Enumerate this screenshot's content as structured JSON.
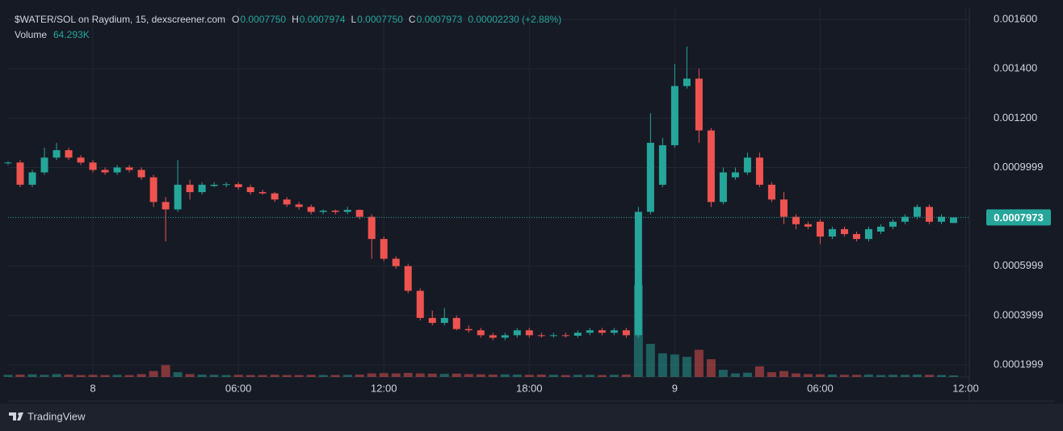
{
  "chart_data": {
    "type": "candlestick",
    "title": "$WATER/SOL on Raydium, 15, dexscreener.com",
    "header": [
      {
        "key": "O",
        "value": "0.0007750"
      },
      {
        "key": "H",
        "value": "0.0007974"
      },
      {
        "key": "L",
        "value": "0.0007750"
      },
      {
        "key": "C",
        "value": "0.0007973"
      }
    ],
    "change": "0.00002230 (+2.88%)",
    "volume_title": "Volume",
    "volume_value_label": "64.293K",
    "brand": "TradingView",
    "up_color": "#26a69a",
    "down_color": "#ef5350",
    "grid": true,
    "open": [
      0.00102,
      0.00102,
      0.00093,
      0.00098,
      0.00104,
      0.00107,
      0.00104,
      0.00102,
      0.00099,
      0.00098,
      0.001,
      0.00099,
      0.00096,
      0.00086,
      0.00083,
      0.00093,
      0.0009,
      0.000925,
      0.00093,
      0.000932,
      0.00092,
      0.0009,
      0.000895,
      0.00087,
      0.00085,
      0.00084,
      0.00082,
      0.000825,
      0.00082,
      0.000828,
      0.0008,
      0.00071,
      0.00063,
      0.0006,
      0.0005,
      0.00039,
      0.00037,
      0.00039,
      0.000345,
      0.00034,
      0.00032,
      0.00031,
      0.00032,
      0.00034,
      0.00032,
      0.000318,
      0.00032,
      0.000318,
      0.00033,
      0.00034,
      0.00033,
      0.00034,
      0.00032,
      0.00082,
      0.00093,
      0.00109,
      0.00133,
      0.00136,
      0.00115,
      0.00086,
      0.00096,
      0.00098,
      0.00104,
      0.00093,
      0.00087,
      0.0008,
      0.00077,
      0.00078,
      0.00072,
      0.00075,
      0.00073,
      0.00071,
      0.00074,
      0.00076,
      0.00078,
      0.0008,
      0.00084,
      0.00078,
      0.000775
    ],
    "high": [
      0.001025,
      0.00103,
      0.00099,
      0.00108,
      0.0011,
      0.00108,
      0.00105,
      0.00103,
      0.001,
      0.00101,
      0.00101,
      0.001,
      0.00097,
      0.00088,
      0.00103,
      0.00095,
      0.00094,
      0.00094,
      0.00094,
      0.00094,
      0.00093,
      0.00091,
      0.0009,
      0.00088,
      0.00086,
      0.00085,
      0.00083,
      0.00083,
      0.00084,
      0.00083,
      0.00081,
      0.00072,
      0.00064,
      0.00061,
      0.00051,
      0.00042,
      0.00043,
      0.0004,
      0.00036,
      0.00035,
      0.00033,
      0.00033,
      0.00035,
      0.00035,
      0.00033,
      0.00033,
      0.00033,
      0.00034,
      0.00035,
      0.00035,
      0.00035,
      0.00035,
      0.00084,
      0.00122,
      0.00112,
      0.00142,
      0.00149,
      0.0014,
      0.00116,
      0.001,
      0.001,
      0.00106,
      0.00106,
      0.00094,
      0.0009,
      0.00081,
      0.00078,
      0.00079,
      0.00076,
      0.00076,
      0.00074,
      0.00076,
      0.00077,
      0.00079,
      0.00081,
      0.00085,
      0.00085,
      0.00081,
      0.0007974
    ],
    "low": [
      0.00101,
      0.00092,
      0.00092,
      0.00097,
      0.00103,
      0.00103,
      0.00101,
      0.00098,
      0.00097,
      0.00097,
      0.00098,
      0.00095,
      0.00084,
      0.0007,
      0.00082,
      0.00087,
      0.00089,
      0.00092,
      0.00092,
      0.00091,
      0.00089,
      0.00089,
      0.00086,
      0.00084,
      0.00083,
      0.00081,
      0.00081,
      0.00081,
      0.00081,
      0.00079,
      0.00063,
      0.00062,
      0.00059,
      0.00049,
      0.00038,
      0.00036,
      0.00036,
      0.00034,
      0.00033,
      0.00031,
      0.0003,
      0.0003,
      0.00031,
      0.00031,
      0.00031,
      0.00031,
      0.00031,
      0.00031,
      0.00032,
      0.00032,
      0.00032,
      0.00031,
      0.00031,
      0.00081,
      0.00092,
      0.00108,
      0.00132,
      0.0011,
      0.00084,
      0.00085,
      0.00095,
      0.00097,
      0.00092,
      0.00086,
      0.00077,
      0.00075,
      0.00075,
      0.00069,
      0.00071,
      0.00072,
      0.0007,
      0.0007,
      0.00073,
      0.00075,
      0.00077,
      0.00079,
      0.00077,
      0.00077,
      0.000775
    ],
    "close": [
      0.00102,
      0.00093,
      0.00098,
      0.00104,
      0.00107,
      0.00104,
      0.00102,
      0.00099,
      0.00098,
      0.001,
      0.00099,
      0.00096,
      0.00086,
      0.00083,
      0.00093,
      0.0009,
      0.00093,
      0.00093,
      0.000932,
      0.00092,
      0.0009,
      0.000895,
      0.00087,
      0.00085,
      0.00084,
      0.00082,
      0.000825,
      0.00082,
      0.000828,
      0.0008,
      0.00071,
      0.00063,
      0.0006,
      0.0005,
      0.00039,
      0.00037,
      0.00039,
      0.000345,
      0.00034,
      0.00032,
      0.00031,
      0.00032,
      0.00034,
      0.00032,
      0.000318,
      0.00032,
      0.000318,
      0.00033,
      0.00034,
      0.00033,
      0.00034,
      0.00032,
      0.00082,
      0.0011,
      0.00109,
      0.00133,
      0.00136,
      0.00115,
      0.00086,
      0.00098,
      0.00098,
      0.00104,
      0.00093,
      0.00087,
      0.0008,
      0.00077,
      0.00076,
      0.00072,
      0.00075,
      0.00073,
      0.00071,
      0.00075,
      0.00076,
      0.00078,
      0.0008,
      0.00084,
      0.00078,
      0.0008,
      0.0007973
    ],
    "volume": [
      90000,
      100000,
      110000,
      90000,
      120000,
      100000,
      80000,
      90000,
      80000,
      90000,
      80000,
      120000,
      250000,
      500000,
      200000,
      120000,
      100000,
      90000,
      80000,
      90000,
      80000,
      80000,
      90000,
      80000,
      80000,
      90000,
      80000,
      80000,
      90000,
      100000,
      150000,
      160000,
      150000,
      170000,
      150000,
      140000,
      130000,
      140000,
      120000,
      110000,
      100000,
      110000,
      100000,
      90000,
      100000,
      90000,
      80000,
      90000,
      90000,
      80000,
      90000,
      100000,
      3900000,
      1400000,
      1000000,
      950000,
      850000,
      1150000,
      750000,
      300000,
      150000,
      180000,
      450000,
      200000,
      250000,
      150000,
      120000,
      110000,
      100000,
      90000,
      90000,
      100000,
      80000,
      90000,
      90000,
      100000,
      90000,
      80000,
      64293
    ],
    "xlim": [
      0,
      79.3
    ],
    "xticks": [
      {
        "value": 7,
        "label": "8"
      },
      {
        "value": 19,
        "label": "06:00"
      },
      {
        "value": 31,
        "label": "12:00"
      },
      {
        "value": 43,
        "label": "18:00"
      },
      {
        "value": 55,
        "label": "9"
      },
      {
        "value": 67,
        "label": "06:00"
      },
      {
        "value": 79,
        "label": "12:00"
      }
    ],
    "ylim": [
      0.000151,
      0.001646
    ],
    "yticks": [
      {
        "value": 0.0016,
        "label": "0.001600"
      },
      {
        "value": 0.0014,
        "label": "0.001400"
      },
      {
        "value": 0.0012,
        "label": "0.001200"
      },
      {
        "value": 0.001,
        "label": "0.0009999"
      },
      {
        "value": 0.0006,
        "label": "0.0005999"
      },
      {
        "value": 0.0004,
        "label": "0.0003999"
      },
      {
        "value": 0.0002,
        "label": "0.0001999"
      }
    ],
    "volume_lim": [
      0,
      4000000
    ],
    "last_price": {
      "value": 0.0007973,
      "label": "0.0007973"
    }
  }
}
